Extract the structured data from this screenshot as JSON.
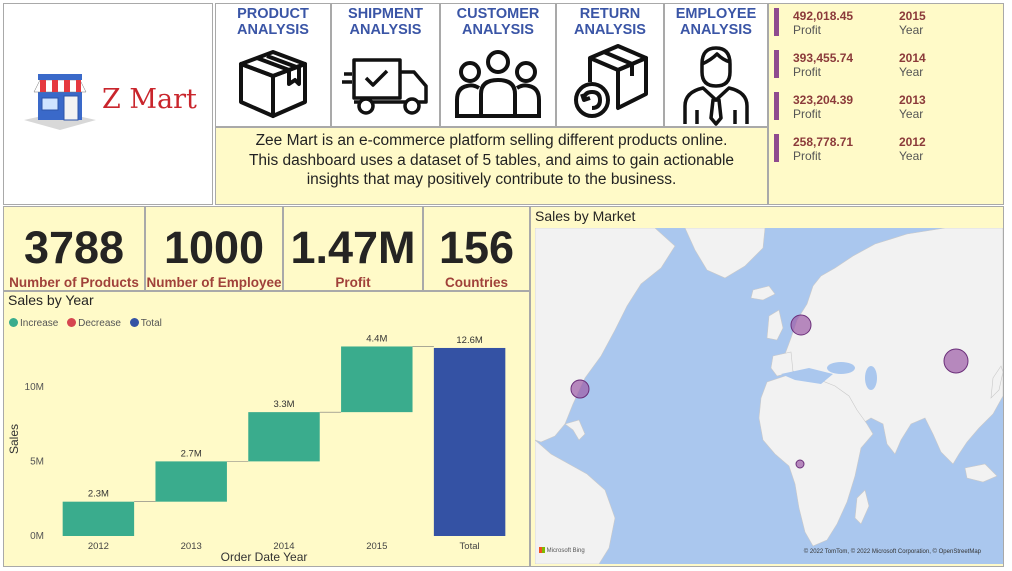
{
  "logo": {
    "text": "Z Mart"
  },
  "nav": [
    {
      "label_line1": "PRODUCT",
      "label_line2": "ANALYSIS",
      "icon": "box-icon"
    },
    {
      "label_line1": "SHIPMENT",
      "label_line2": "ANALYSIS",
      "icon": "delivery-truck-icon"
    },
    {
      "label_line1": "CUSTOMER",
      "label_line2": "ANALYSIS",
      "icon": "people-group-icon"
    },
    {
      "label_line1": "RETURN",
      "label_line2": "ANALYSIS",
      "icon": "return-box-icon"
    },
    {
      "label_line1": "EMPLOYEE",
      "label_line2": "ANALYSIS",
      "icon": "employee-icon"
    }
  ],
  "description": {
    "line1": "Zee Mart is an e-commerce platform selling different products online.",
    "line2": "This dashboard uses a dataset of 5 tables, and aims to gain actionable",
    "line3": "insights that may positively contribute to the business."
  },
  "yearly_profit": [
    {
      "value": "492,018.45",
      "value_label": "Profit",
      "year": "2015",
      "year_label": "Year"
    },
    {
      "value": "393,455.74",
      "value_label": "Profit",
      "year": "2014",
      "year_label": "Year"
    },
    {
      "value": "323,204.39",
      "value_label": "Profit",
      "year": "2013",
      "year_label": "Year"
    },
    {
      "value": "258,778.71",
      "value_label": "Profit",
      "year": "2012",
      "year_label": "Year"
    }
  ],
  "kpis": [
    {
      "value": "3788",
      "label": "Number of Products"
    },
    {
      "value": "1000",
      "label": "Number of Employee"
    },
    {
      "value": "1.47M",
      "label": "Profit"
    },
    {
      "value": "156",
      "label": "Countries"
    }
  ],
  "sales_by_year": {
    "title": "Sales by Year",
    "legend": {
      "increase": "Increase",
      "decrease": "Decrease",
      "total": "Total"
    }
  },
  "sales_by_market": {
    "title": "Sales by Market",
    "bing_logo": "Microsoft Bing",
    "attribution": "© 2022 TomTom, © 2022 Microsoft Corporation, © OpenStreetMap"
  },
  "colors": {
    "increase": "#3aac8d",
    "decrease": "#d64550",
    "total": "#3452a4",
    "bubble": "#9c5ba6"
  },
  "chart_data": {
    "type": "bar",
    "subtype": "waterfall",
    "title": "Sales by Year",
    "xlabel": "Order Date Year",
    "ylabel": "Sales",
    "categories": [
      "2012",
      "2013",
      "2014",
      "2015",
      "Total"
    ],
    "values": [
      2.3,
      2.7,
      3.3,
      4.4,
      12.6
    ],
    "data_labels": [
      "2.3M",
      "2.7M",
      "3.3M",
      "4.4M",
      "12.6M"
    ],
    "kinds": [
      "increase",
      "increase",
      "increase",
      "increase",
      "total"
    ],
    "ylim": [
      0,
      13
    ],
    "yticks": [
      0,
      5,
      10
    ],
    "ytick_labels": [
      "0M",
      "5M",
      "10M"
    ],
    "grid": false,
    "legend_placement": "top-left"
  }
}
